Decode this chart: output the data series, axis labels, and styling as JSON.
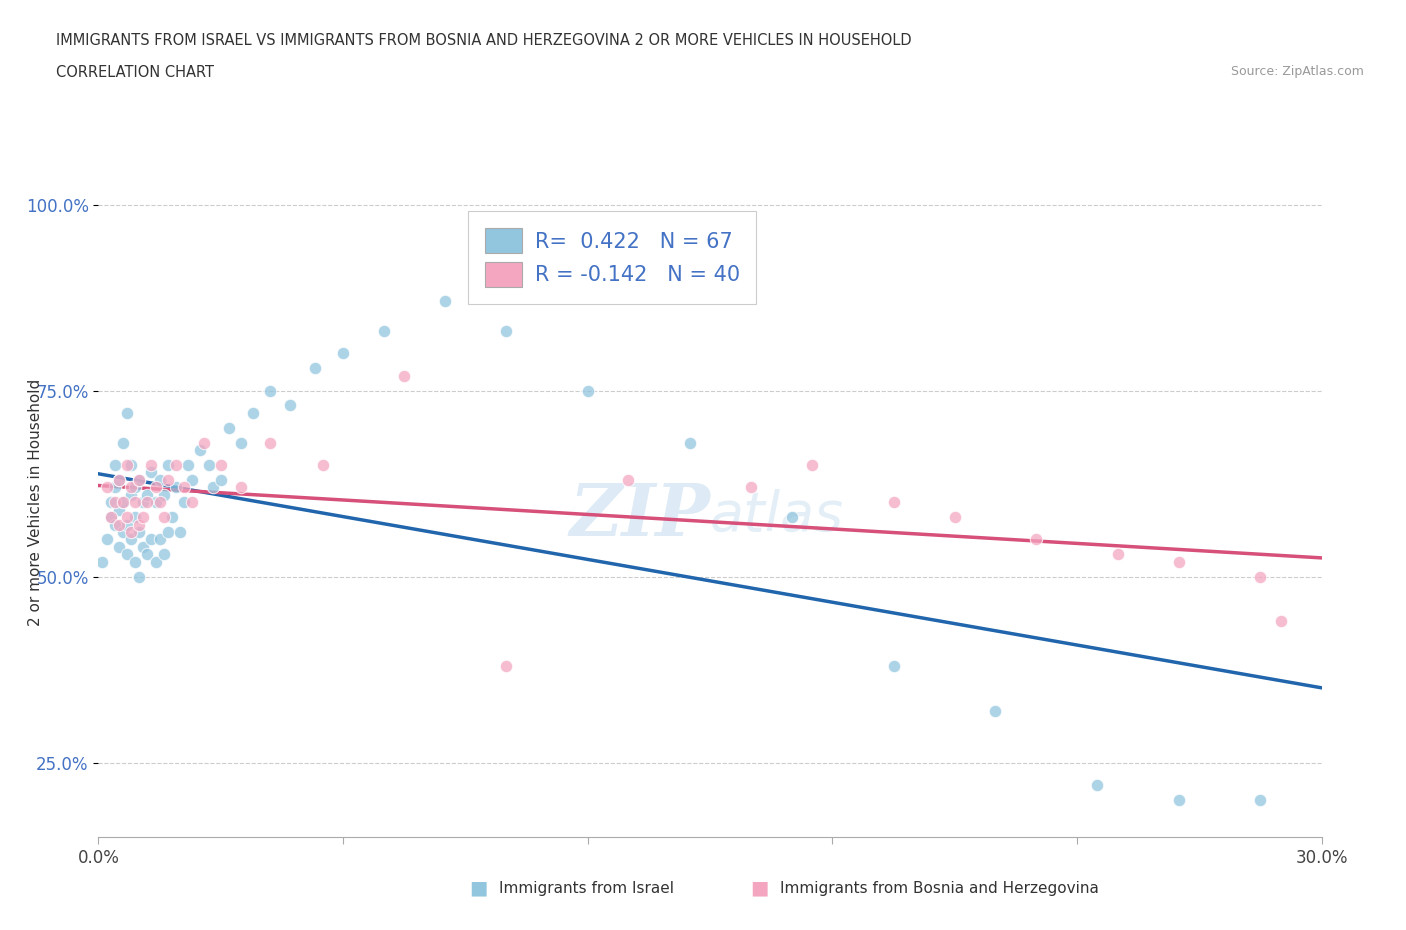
{
  "title_line1": "IMMIGRANTS FROM ISRAEL VS IMMIGRANTS FROM BOSNIA AND HERZEGOVINA 2 OR MORE VEHICLES IN HOUSEHOLD",
  "title_line2": "CORRELATION CHART",
  "source_text": "Source: ZipAtlas.com",
  "ylabel": "2 or more Vehicles in Household",
  "xmin": 0.0,
  "xmax": 0.3,
  "ymin": 0.15,
  "ymax": 1.05,
  "ytick_labels": [
    "25.0%",
    "50.0%",
    "75.0%",
    "100.0%"
  ],
  "ytick_vals": [
    0.25,
    0.5,
    0.75,
    1.0
  ],
  "xtick_labels": [
    "0.0%",
    "",
    "",
    "",
    "",
    "30.0%"
  ],
  "xtick_vals": [
    0.0,
    0.06,
    0.12,
    0.18,
    0.24,
    0.3
  ],
  "israel_R": 0.422,
  "israel_N": 67,
  "bosnia_R": -0.142,
  "bosnia_N": 40,
  "israel_color": "#92c5de",
  "israel_line_color": "#2166ac",
  "bosnia_color": "#f4a6c0",
  "bosnia_line_color": "#d6507a",
  "watermark_color": "#c8dff0",
  "israel_x": [
    0.001,
    0.002,
    0.003,
    0.003,
    0.004,
    0.004,
    0.004,
    0.005,
    0.005,
    0.005,
    0.006,
    0.006,
    0.006,
    0.007,
    0.007,
    0.007,
    0.008,
    0.008,
    0.008,
    0.009,
    0.009,
    0.009,
    0.01,
    0.01,
    0.01,
    0.011,
    0.011,
    0.012,
    0.012,
    0.013,
    0.013,
    0.014,
    0.014,
    0.015,
    0.015,
    0.016,
    0.016,
    0.017,
    0.017,
    0.018,
    0.019,
    0.02,
    0.021,
    0.022,
    0.023,
    0.025,
    0.027,
    0.028,
    0.03,
    0.032,
    0.035,
    0.038,
    0.042,
    0.047,
    0.053,
    0.06,
    0.07,
    0.085,
    0.1,
    0.12,
    0.145,
    0.17,
    0.195,
    0.22,
    0.245,
    0.265,
    0.285
  ],
  "israel_y": [
    0.52,
    0.55,
    0.58,
    0.6,
    0.57,
    0.62,
    0.65,
    0.54,
    0.59,
    0.63,
    0.56,
    0.6,
    0.68,
    0.53,
    0.57,
    0.72,
    0.55,
    0.61,
    0.65,
    0.52,
    0.58,
    0.62,
    0.5,
    0.56,
    0.63,
    0.54,
    0.6,
    0.53,
    0.61,
    0.55,
    0.64,
    0.52,
    0.6,
    0.55,
    0.63,
    0.53,
    0.61,
    0.56,
    0.65,
    0.58,
    0.62,
    0.56,
    0.6,
    0.65,
    0.63,
    0.67,
    0.65,
    0.62,
    0.63,
    0.7,
    0.68,
    0.72,
    0.75,
    0.73,
    0.78,
    0.8,
    0.83,
    0.87,
    0.83,
    0.75,
    0.68,
    0.58,
    0.38,
    0.32,
    0.22,
    0.2,
    0.2
  ],
  "bosnia_x": [
    0.002,
    0.003,
    0.004,
    0.005,
    0.005,
    0.006,
    0.007,
    0.007,
    0.008,
    0.008,
    0.009,
    0.01,
    0.01,
    0.011,
    0.012,
    0.013,
    0.014,
    0.015,
    0.016,
    0.017,
    0.019,
    0.021,
    0.023,
    0.026,
    0.03,
    0.035,
    0.042,
    0.055,
    0.075,
    0.1,
    0.13,
    0.16,
    0.195,
    0.23,
    0.265,
    0.285,
    0.175,
    0.21,
    0.29,
    0.25
  ],
  "bosnia_y": [
    0.62,
    0.58,
    0.6,
    0.57,
    0.63,
    0.6,
    0.58,
    0.65,
    0.56,
    0.62,
    0.6,
    0.57,
    0.63,
    0.58,
    0.6,
    0.65,
    0.62,
    0.6,
    0.58,
    0.63,
    0.65,
    0.62,
    0.6,
    0.68,
    0.65,
    0.62,
    0.68,
    0.65,
    0.77,
    0.38,
    0.63,
    0.62,
    0.6,
    0.55,
    0.52,
    0.5,
    0.65,
    0.58,
    0.44,
    0.53
  ]
}
